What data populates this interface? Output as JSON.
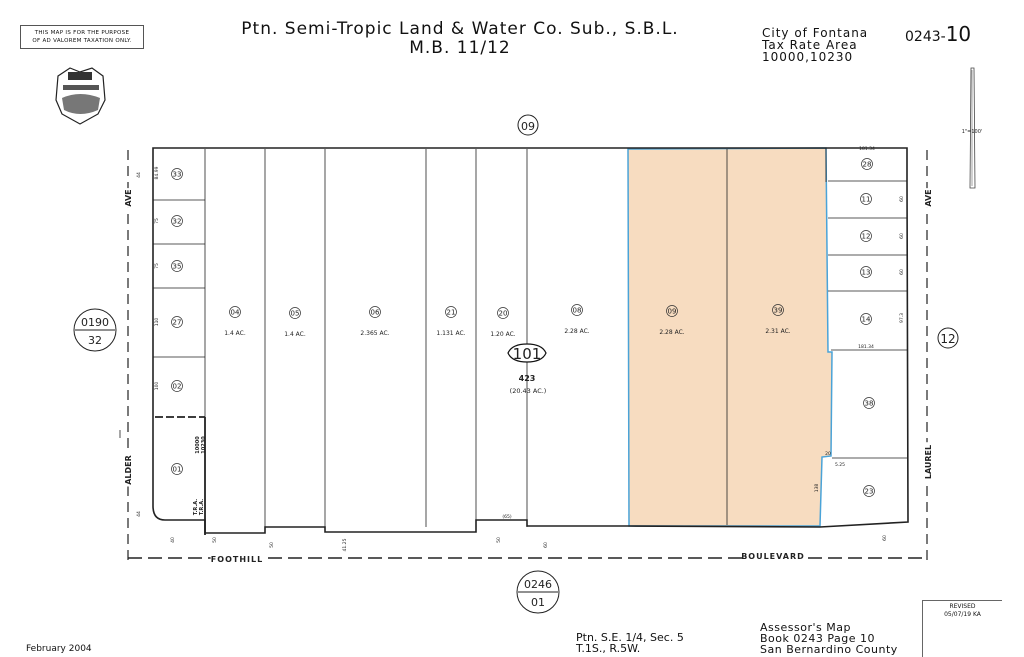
{
  "disclaimer": [
    "THIS MAP IS FOR THE PURPOSE",
    "OF AD VALOREM TAXATION ONLY."
  ],
  "title": {
    "line1": "Ptn. Semi-Tropic Land & Water Co. Sub., S.B.L.",
    "line2": "M.B. 11/12"
  },
  "city": {
    "line1": "City of Fontana",
    "line2": "Tax Rate Area",
    "line3": "10000,10230"
  },
  "map_number": {
    "book": "0243-",
    "page": "10"
  },
  "scale": "1\"=100'",
  "colors": {
    "highlight_fill": "#f7dcc0",
    "highlight_stroke": "#4aa3d8",
    "line": "#222222"
  },
  "block": {
    "number": "101",
    "count": "423",
    "acreage": "(20.43 AC.)"
  },
  "adjacent_pages": {
    "north": "09",
    "east": "12",
    "west": {
      "top": "0190",
      "bottom": "32"
    },
    "south": {
      "top": "0246",
      "bottom": "01"
    }
  },
  "streets": {
    "west": [
      "ALDER",
      "AVE"
    ],
    "east": [
      "LAUREL",
      "AVE"
    ],
    "south": [
      "FOOTHILL",
      "BOULEVARD"
    ]
  },
  "parcels": [
    {
      "id": "33",
      "acreage": "",
      "highlighted": false
    },
    {
      "id": "32",
      "acreage": "",
      "highlighted": false
    },
    {
      "id": "35",
      "acreage": "",
      "highlighted": false
    },
    {
      "id": "27",
      "acreage": "",
      "highlighted": false
    },
    {
      "id": "02",
      "acreage": "",
      "highlighted": false
    },
    {
      "id": "01",
      "acreage": "",
      "highlighted": false
    },
    {
      "id": "04",
      "acreage": "1.4 AC.",
      "highlighted": false
    },
    {
      "id": "05",
      "acreage": "1.4 AC.",
      "highlighted": false
    },
    {
      "id": "06",
      "acreage": "2.365 AC.",
      "highlighted": false
    },
    {
      "id": "21",
      "acreage": "1.131 AC.",
      "highlighted": false
    },
    {
      "id": "20",
      "acreage": "1.20 AC.",
      "highlighted": false
    },
    {
      "id": "08",
      "acreage": "2.28 AC.",
      "highlighted": false
    },
    {
      "id": "09",
      "acreage": "2.28 AC.",
      "highlighted": true
    },
    {
      "id": "39",
      "acreage": "2.31 AC.",
      "highlighted": true
    },
    {
      "id": "28",
      "acreage": "",
      "highlighted": false
    },
    {
      "id": "11",
      "acreage": "",
      "highlighted": false
    },
    {
      "id": "12",
      "acreage": "",
      "highlighted": false
    },
    {
      "id": "13",
      "acreage": "",
      "highlighted": false
    },
    {
      "id": "14",
      "acreage": "",
      "highlighted": false
    },
    {
      "id": "38",
      "acreage": "",
      "highlighted": false
    },
    {
      "id": "23",
      "acreage": "",
      "highlighted": false
    }
  ],
  "dimensions": [
    "84.99",
    "75",
    "75",
    "110",
    "100",
    "181.34",
    "181.34",
    "60",
    "60",
    "60",
    "97.3",
    "20",
    "5.25",
    "138",
    "(65)",
    "50",
    "50",
    "40",
    "41.25",
    "50",
    "60",
    "60",
    "44",
    "44"
  ],
  "tra_labels": [
    "10000",
    "10230",
    "T.R.A.",
    "T.R.A."
  ],
  "footer": {
    "date": "February 2004",
    "section": [
      "Ptn. S.E. 1/4, Sec. 5",
      "T.1S., R.5W."
    ],
    "assessor": [
      "Assessor's Map",
      "Book 0243 Page 10",
      "San Bernardino County"
    ],
    "revised": [
      "REVISED",
      "05/07/19 KA"
    ]
  }
}
